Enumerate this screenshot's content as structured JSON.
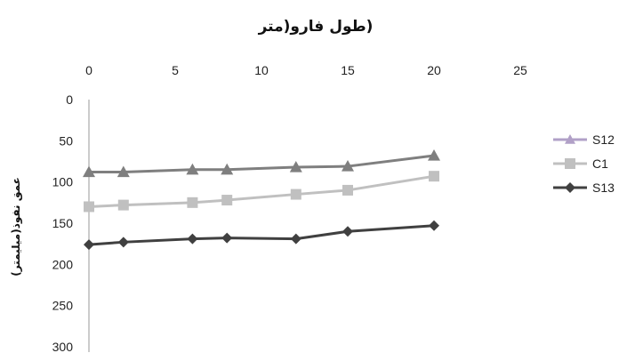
{
  "chart_data": {
    "type": "line",
    "title": "(طول فارو(متر",
    "ylabel": "عمق نفوذ(میلیمتر)",
    "x_ticks": [
      "0",
      "5",
      "10",
      "15",
      "20",
      "25"
    ],
    "y_ticks": [
      "0",
      "50",
      "100",
      "150",
      "200",
      "250",
      "300"
    ],
    "xlim": [
      0,
      25
    ],
    "ylim": [
      0,
      300
    ],
    "y_inverted": true,
    "x_axis_position": "top",
    "grid": false,
    "legend_position": "right",
    "series": [
      {
        "name": "S12",
        "color": "#7f7f7f",
        "legend_color": "#b1a0c7",
        "marker": "triangle",
        "points": [
          [
            0,
            88
          ],
          [
            2,
            88
          ],
          [
            6,
            85
          ],
          [
            8,
            85
          ],
          [
            12,
            82
          ],
          [
            15,
            81
          ],
          [
            20,
            68
          ]
        ]
      },
      {
        "name": "C1",
        "color": "#c0c0c0",
        "legend_color": "#c0c0c0",
        "marker": "square",
        "points": [
          [
            0,
            130
          ],
          [
            2,
            128
          ],
          [
            6,
            125
          ],
          [
            8,
            122
          ],
          [
            12,
            115
          ],
          [
            15,
            110
          ],
          [
            20,
            93
          ]
        ]
      },
      {
        "name": "S13",
        "color": "#404040",
        "legend_color": "#404040",
        "marker": "diamond",
        "points": [
          [
            0,
            176
          ],
          [
            2,
            173
          ],
          [
            6,
            169
          ],
          [
            8,
            168
          ],
          [
            12,
            169
          ],
          [
            15,
            160
          ],
          [
            20,
            153
          ]
        ]
      }
    ]
  }
}
